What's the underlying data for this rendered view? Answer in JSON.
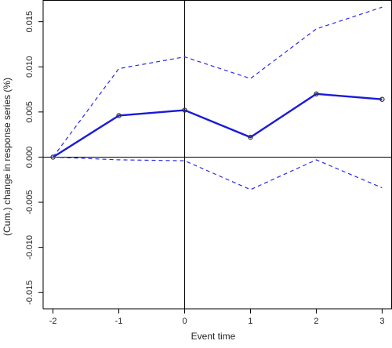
{
  "chart_data": {
    "type": "line",
    "title": "",
    "xlabel": "Event time",
    "ylabel": "(Cum.) change in response series (%)",
    "x": [
      -2,
      -1,
      0,
      1,
      2,
      3
    ],
    "x_ticks": [
      "-2",
      "-1",
      "0",
      "1",
      "2",
      "3"
    ],
    "y_ticks": [
      "-0.015",
      "-0.010",
      "-0.005",
      "0.000",
      "0.005",
      "0.010",
      "0.015"
    ],
    "y_tick_values": [
      -0.015,
      -0.01,
      -0.005,
      0.0,
      0.005,
      0.01,
      0.015
    ],
    "xlim": [
      -2.15,
      3.15
    ],
    "ylim": [
      -0.0168,
      0.0174
    ],
    "grid": false,
    "reference_lines": {
      "x": 0,
      "y": 0
    },
    "series": [
      {
        "role": "estimate",
        "style": "solid",
        "markers": true,
        "values": [
          0.0,
          0.0046,
          0.0052,
          0.0022,
          0.007,
          0.0064
        ]
      },
      {
        "role": "upper-bound",
        "style": "dashed",
        "markers": false,
        "values": [
          0.0,
          0.0098,
          0.0111,
          0.0087,
          0.0142,
          0.0166
        ]
      },
      {
        "role": "lower-bound",
        "style": "dashed",
        "markers": false,
        "values": [
          0.0,
          -0.0003,
          -0.0004,
          -0.0036,
          -0.0003,
          -0.0034
        ]
      }
    ],
    "colors": {
      "line": "#1a1adb",
      "band": "#2a2ae8",
      "axis": "#000000",
      "marker": "#333333"
    }
  }
}
